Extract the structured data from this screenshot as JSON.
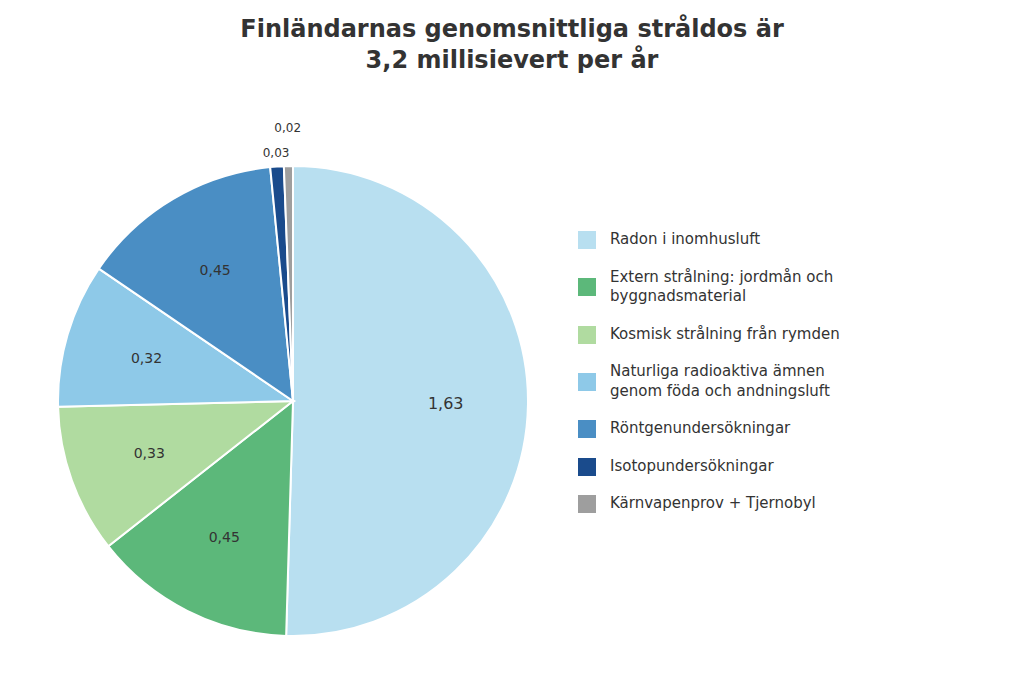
{
  "chart_data": {
    "type": "pie",
    "title": "Finländarnas genomsnittliga stråldos är\n3,2 millisievert per år",
    "categories": [
      "Radon i inomhusluft",
      "Extern strålning: jordmån och\nbyggnadsmaterial",
      "Kosmisk strålning från rymden",
      "Naturliga radioaktiva ämnen\ngenom föda och andningsluft",
      "Röntgenundersökningar",
      "Isotopundersökningar",
      "Kärnvapenprov + Tjernobyl"
    ],
    "values": [
      1.63,
      0.45,
      0.33,
      0.32,
      0.45,
      0.03,
      0.02
    ],
    "value_labels": [
      "1,63",
      "0,45",
      "0,33",
      "0,32",
      "0,45",
      "0,03",
      "0,02"
    ],
    "colors": [
      "#b8dff0",
      "#5cb87a",
      "#b0dba0",
      "#8ec9e8",
      "#4a8ec4",
      "#1a4b8c",
      "#9e9e9e"
    ],
    "data_labels": true,
    "legend": "right"
  }
}
